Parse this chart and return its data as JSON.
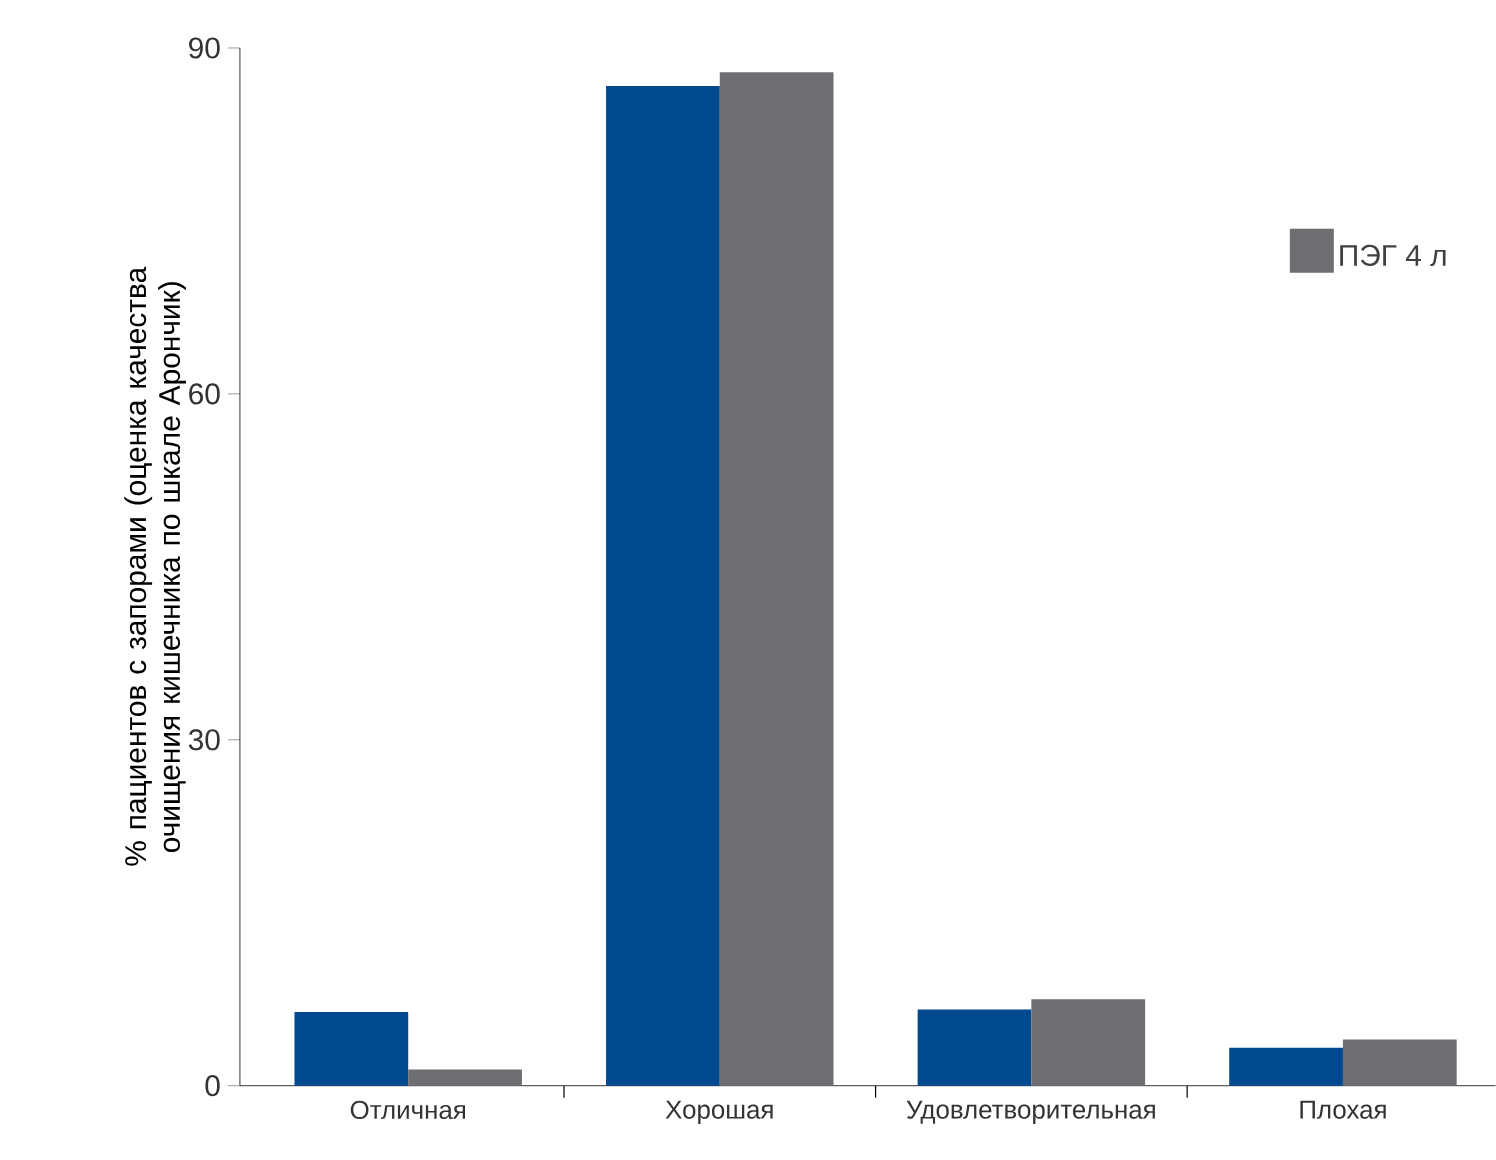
{
  "chart_data": {
    "type": "bar",
    "ylabel": "% пациентов с запорами (оценка качества очищения кишечника по шкале Арончик)",
    "categories": [
      "Отличная",
      "Хорошая",
      "Удовлетворительная",
      "Плохая"
    ],
    "series": [
      {
        "color": "#004990",
        "values": [
          6.4,
          86.7,
          6.6,
          3.3
        ]
      },
      {
        "name": "ПЭГ 4 л",
        "color": "#6d6e71",
        "values": [
          1.4,
          87.9,
          7.5,
          4.0
        ]
      }
    ],
    "ylim": [
      0,
      90
    ],
    "yticks": [
      0,
      30,
      60,
      90
    ],
    "legend": "top right",
    "grid": false
  }
}
